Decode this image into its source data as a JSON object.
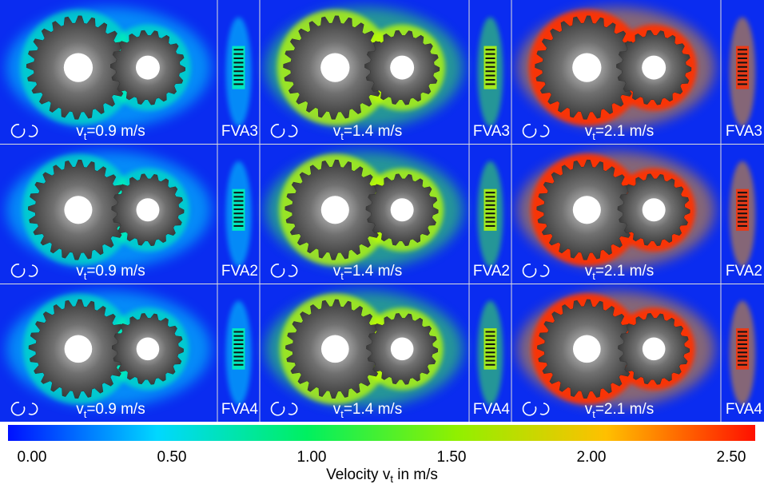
{
  "rows": [
    {
      "cells": [
        {
          "speed": {
            "symbol": "v",
            "subscript": "t",
            "text": "=0.9 m/s"
          },
          "oil": "FVA3"
        },
        {
          "speed": {
            "symbol": "v",
            "subscript": "t",
            "text": "=1.4 m/s"
          },
          "oil": "FVA3"
        },
        {
          "speed": {
            "symbol": "v",
            "subscript": "t",
            "text": "=2.1 m/s"
          },
          "oil": "FVA3"
        }
      ]
    },
    {
      "cells": [
        {
          "speed": {
            "symbol": "v",
            "subscript": "t",
            "text": "=0.9 m/s"
          },
          "oil": "FVA2"
        },
        {
          "speed": {
            "symbol": "v",
            "subscript": "t",
            "text": "=1.4 m/s"
          },
          "oil": "FVA2"
        },
        {
          "speed": {
            "symbol": "v",
            "subscript": "t",
            "text": "=2.1 m/s"
          },
          "oil": "FVA2"
        }
      ]
    },
    {
      "cells": [
        {
          "speed": {
            "symbol": "v",
            "subscript": "t",
            "text": "=0.9 m/s"
          },
          "oil": "FVA4"
        },
        {
          "speed": {
            "symbol": "v",
            "subscript": "t",
            "text": "=1.4 m/s"
          },
          "oil": "FVA4"
        },
        {
          "speed": {
            "symbol": "v",
            "subscript": "t",
            "text": "=2.1 m/s"
          },
          "oil": "FVA4"
        }
      ]
    }
  ],
  "colorbar": {
    "lim": [
      0,
      2.5
    ],
    "ticks": [
      {
        "value": 0,
        "label": "0.00"
      },
      {
        "value": 0.5,
        "label": "0.50"
      },
      {
        "value": 1,
        "label": "1.00"
      },
      {
        "value": 1.5,
        "label": "1.50"
      },
      {
        "value": 2,
        "label": "2.00"
      },
      {
        "value": 2.5,
        "label": "2.50"
      }
    ],
    "title": {
      "text": "Velocity v",
      "subscript": "t",
      "suffix": " in m/s"
    }
  }
}
